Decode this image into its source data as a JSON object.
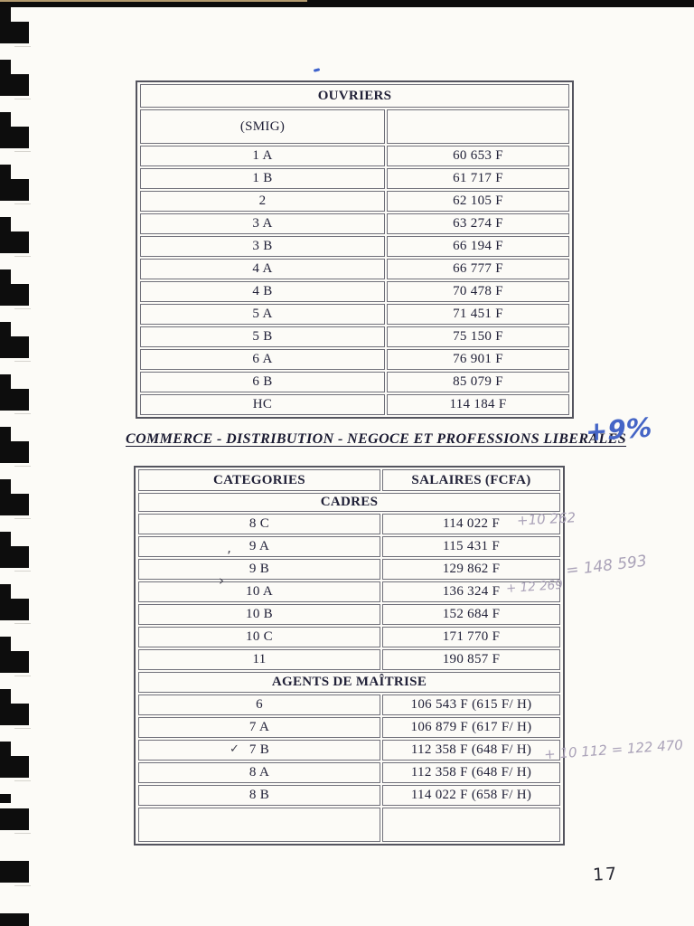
{
  "ouvriers_table": {
    "title": "OUVRIERS",
    "smig_label": "(SMIG)",
    "rows": [
      {
        "category": "1 A",
        "salary": "60 653 F"
      },
      {
        "category": "1 B",
        "salary": "61 717 F"
      },
      {
        "category": "2",
        "salary": "62 105 F"
      },
      {
        "category": "3 A",
        "salary": "63 274 F"
      },
      {
        "category": "3 B",
        "salary": "66 194 F"
      },
      {
        "category": "4 A",
        "salary": "66 777 F"
      },
      {
        "category": "4 B",
        "salary": "70 478 F"
      },
      {
        "category": "5 A",
        "salary": "71 451 F"
      },
      {
        "category": "5 B",
        "salary": "75 150 F"
      },
      {
        "category": "6 A",
        "salary": "76 901 F"
      },
      {
        "category": "6 B",
        "salary": "85 079 F"
      },
      {
        "category": "HC",
        "salary": "114 184 F"
      }
    ]
  },
  "section_title": "COMMERCE - DISTRIBUTION - NEGOCE ET PROFESSIONS LIBERALES",
  "commerce_table": {
    "header_categories": "CATEGORIES",
    "header_salaries": "SALAIRES (FCFA)",
    "cadres_label": "CADRES",
    "cadres_rows": [
      {
        "category": "8 C",
        "salary": "114 022 F"
      },
      {
        "category": "9 A",
        "salary": "115 431 F"
      },
      {
        "category": "9 B",
        "salary": "129 862 F"
      },
      {
        "category": "10 A",
        "salary": "136 324 F"
      },
      {
        "category": "10 B",
        "salary": "152 684 F"
      },
      {
        "category": "10 C",
        "salary": "171 770 F"
      },
      {
        "category": "11",
        "salary": "190 857 F"
      }
    ],
    "agents_label": "AGENTS DE MAÎTRISE",
    "agents_rows": [
      {
        "category": "6",
        "salary": "106 543 F (615 F/ H)"
      },
      {
        "category": "7 A",
        "salary": "106 879 F (617 F/ H)"
      },
      {
        "category": "7 B",
        "salary": "112 358 F (648 F/ H)"
      },
      {
        "category": "8 A",
        "salary": "112 358 F (648 F/ H)"
      },
      {
        "category": "8 B",
        "salary": "114 022 F (658 F/ H)"
      }
    ]
  },
  "handwritten": {
    "percent_note": "+9%",
    "note_8c": "+10 262",
    "note_10a": "+ 12 269",
    "note_10a_total": "= 148 593",
    "note_8a": "+ 10 112 = 122 470",
    "check_8a": "✓",
    "mark_10a": "›",
    "mark_9b": "’",
    "page_number": "17"
  },
  "colors": {
    "ink_blue": "#4565c6",
    "pencil": "#aaa2b8",
    "table_ink": "#212138"
  }
}
